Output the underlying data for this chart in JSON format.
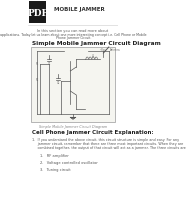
{
  "bg_color": "#ffffff",
  "pdf_icon_bg": "#1a1a1a",
  "pdf_icon_text": "PDF",
  "pdf_icon_color": "#ffffff",
  "header_title": "MOBILE JAMMER",
  "header_title_color": "#333333",
  "body_text_line1": "In this section you can read more about",
  "body_link_text": "Simple FM Radio Jammer Circuit",
  "body_text_line1b": "and its",
  "body_text_line2": "applications. Today let us learn about one more interesting concept i.e. Cell Phone or Mobile",
  "body_text_line3": "Phone Jammer Circuit.",
  "body_link_color": "#2980b9",
  "body_text_color": "#555555",
  "section_title": "Simple Mobile Jammer Circuit Diagram",
  "section_title_color": "#222222",
  "diagram_bg": "#f5f5f0",
  "diagram_border": "#aaaaaa",
  "diagram_caption": "Simple Mobile Jammer Circuit Diagram",
  "diagram_caption_color": "#888888",
  "section2_title": "Cell Phone Jammer Circuit Explanation:",
  "section2_title_color": "#222222",
  "explanation_line1": "1.   If you understand the above circuit, this circuit structure is simple and easy. For any",
  "explanation_line2": "     jammer circuit, remember that there are three most important circuits. When they are",
  "explanation_line3": "     combined together, the output of that circuit will act as a jammer. The three circuits are:",
  "item1": "1.   RF amplifier",
  "item2": "2.   Voltage controlled oscillator",
  "item3": "3.   Tuning circuit",
  "item_color": "#555555"
}
